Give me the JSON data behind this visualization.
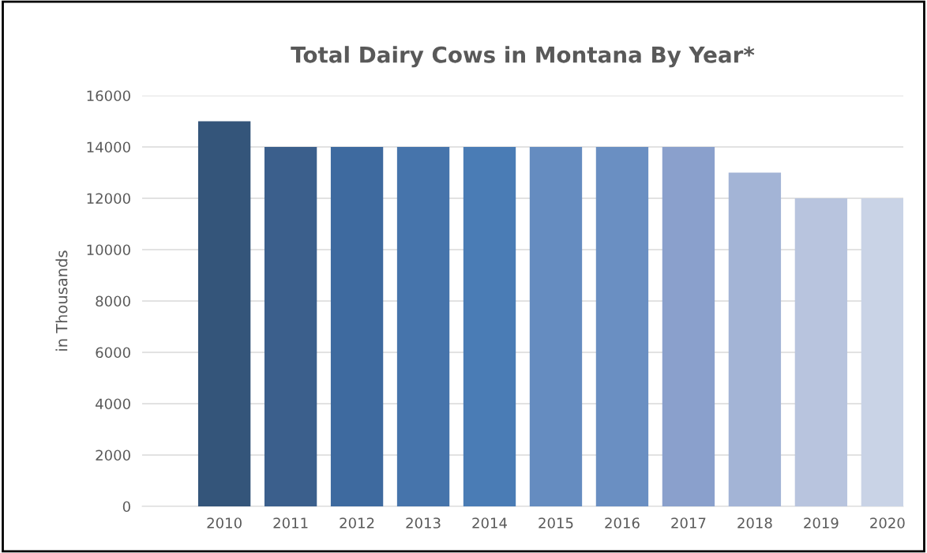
{
  "chart_data": {
    "type": "bar",
    "title": "Total Dairy Cows in Montana By Year*",
    "ylabel": "in Thousands",
    "categories": [
      "2010",
      "2011",
      "2012",
      "2013",
      "2014",
      "2015",
      "2016",
      "2017",
      "2018",
      "2019",
      "2020"
    ],
    "values": [
      15000,
      14000,
      14000,
      14000,
      14000,
      14000,
      14000,
      14000,
      13000,
      12000,
      12000
    ],
    "colors": [
      "#34557a",
      "#3b5f8c",
      "#3e6a9f",
      "#4674ab",
      "#4a7cb5",
      "#658cc0",
      "#6a8fc2",
      "#8aa0cc",
      "#a3b4d6",
      "#b8c4de",
      "#c9d3e6"
    ],
    "ylim": [
      0,
      16000
    ],
    "yticks": [
      0,
      2000,
      4000,
      6000,
      8000,
      10000,
      12000,
      14000,
      16000
    ],
    "grid": "y"
  }
}
